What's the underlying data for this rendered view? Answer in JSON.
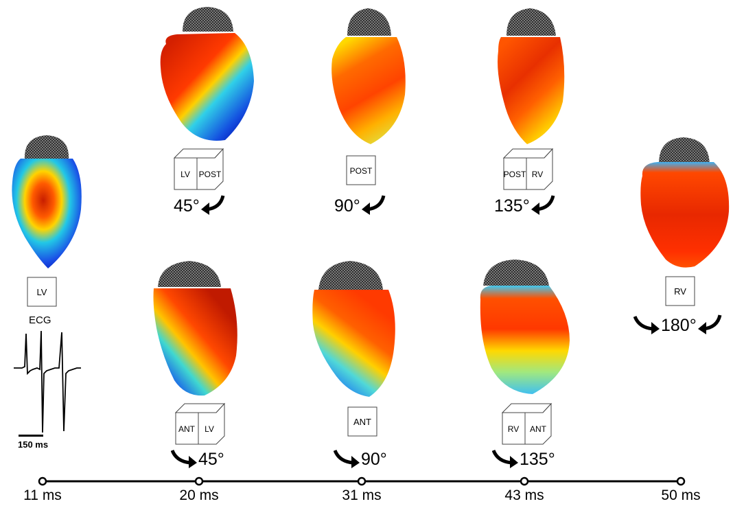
{
  "ecg": {
    "title": "ECG",
    "scale": "150 ms"
  },
  "timeline": {
    "ticks": [
      "11 ms",
      "20 ms",
      "31 ms",
      "43 ms",
      "50 ms"
    ]
  },
  "views": {
    "lv": {
      "box_single": "LV"
    },
    "post45": {
      "box_left": "LV",
      "box_right": "POST",
      "angle": "45°"
    },
    "post90": {
      "box_single": "POST",
      "angle": "90°"
    },
    "post135": {
      "box_left": "POST",
      "box_right": "RV",
      "angle": "135°"
    },
    "ant45": {
      "box_left": "ANT",
      "box_right": "LV",
      "angle": "45°"
    },
    "ant90": {
      "box_single": "ANT",
      "angle": "90°"
    },
    "ant135": {
      "box_left": "RV",
      "box_right": "ANT",
      "angle": "135°"
    },
    "rv180": {
      "box_single": "RV",
      "angle": "180°"
    }
  },
  "colors": {
    "activation_early": "#b40000",
    "activation_mid": "#ffd000",
    "activation_late": "#0018c8",
    "cap": "#3a3a3a"
  }
}
